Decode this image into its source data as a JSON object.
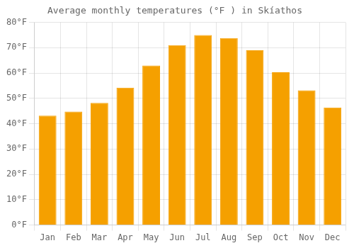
{
  "chart_data": {
    "type": "bar",
    "title": "Average monthly temperatures (°F ) in Skí­athos",
    "categories": [
      "Jan",
      "Feb",
      "Mar",
      "Apr",
      "May",
      "Jun",
      "Jul",
      "Aug",
      "Sep",
      "Oct",
      "Nov",
      "Dec"
    ],
    "values": [
      43.2,
      44.8,
      48.2,
      54.2,
      63.0,
      71.0,
      75.0,
      73.8,
      69.0,
      60.3,
      53.2,
      46.4
    ],
    "color": "#F5A000",
    "ylim": [
      0,
      80
    ],
    "yticks": [
      {
        "value": 0,
        "label": "0°F"
      },
      {
        "value": 10,
        "label": "10°F"
      },
      {
        "value": 20,
        "label": "20°F"
      },
      {
        "value": 30,
        "label": "30°F"
      },
      {
        "value": 40,
        "label": "40°F"
      },
      {
        "value": 50,
        "label": "50°F"
      },
      {
        "value": 60,
        "label": "60°F"
      },
      {
        "value": 70,
        "label": "70°F"
      },
      {
        "value": 80,
        "label": "80°F"
      }
    ],
    "grid": true
  }
}
